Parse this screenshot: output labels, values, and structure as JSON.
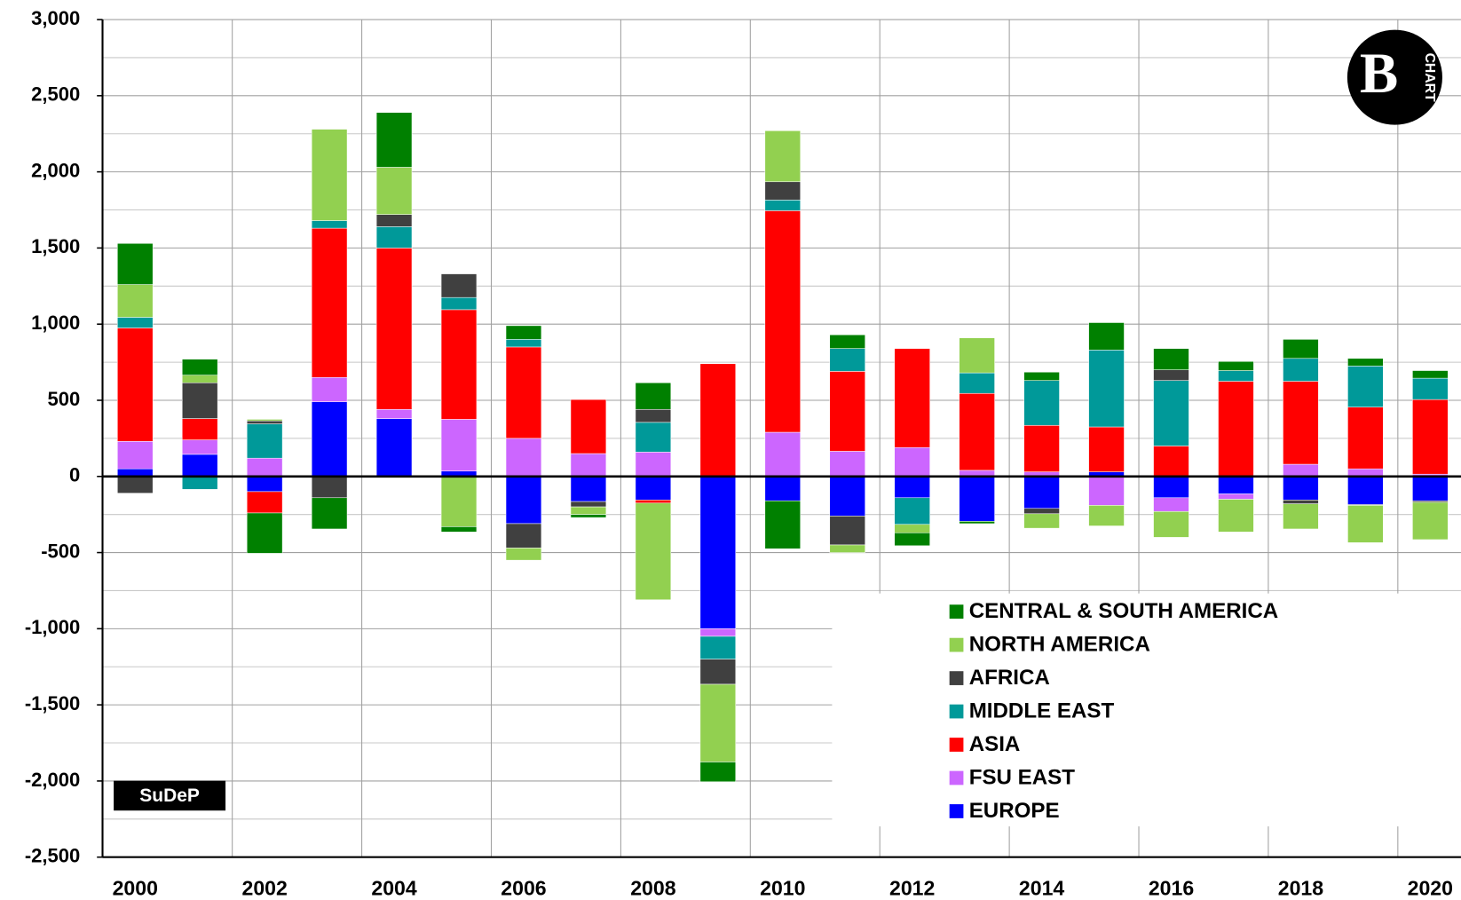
{
  "chart_data": {
    "type": "stacked_bar",
    "categories": [
      "2000",
      null,
      "2002",
      null,
      "2004",
      null,
      "2006",
      null,
      "2008",
      null,
      "2010",
      null,
      "2012",
      null,
      "2014",
      null,
      "2016",
      null,
      "2018",
      null,
      "2020"
    ],
    "series": [
      {
        "name": "EUROPE",
        "color": "#0000ff",
        "values": [
          50,
          145,
          -100,
          490,
          380,
          35,
          -310,
          -165,
          -155,
          -1000,
          -160,
          -260,
          -140,
          -295,
          -210,
          30,
          -140,
          -115,
          -155,
          -185,
          -160
        ]
      },
      {
        "name": "FSU EAST",
        "color": "#cc66ff",
        "values": [
          180,
          95,
          120,
          160,
          60,
          340,
          250,
          150,
          160,
          -50,
          290,
          165,
          190,
          40,
          30,
          -190,
          -90,
          -35,
          80,
          50,
          15
        ]
      },
      {
        "name": "ASIA",
        "color": "#ff0000",
        "values": [
          745,
          140,
          -140,
          980,
          1060,
          720,
          600,
          355,
          -20,
          740,
          1455,
          525,
          650,
          505,
          305,
          295,
          200,
          625,
          545,
          405,
          490
        ]
      },
      {
        "name": "MIDDLE EAST",
        "color": "#009999",
        "values": [
          70,
          -85,
          225,
          50,
          140,
          80,
          50,
          0,
          195,
          -150,
          70,
          150,
          -175,
          135,
          295,
          505,
          430,
          70,
          150,
          270,
          140
        ]
      },
      {
        "name": "AFRICA",
        "color": "#404040",
        "values": [
          -110,
          235,
          20,
          -140,
          80,
          155,
          -160,
          -35,
          85,
          -165,
          120,
          -190,
          0,
          0,
          -35,
          0,
          70,
          0,
          -25,
          -5,
          -10
        ]
      },
      {
        "name": "NORTH AMERICA",
        "color": "#92d050",
        "values": [
          215,
          50,
          10,
          600,
          310,
          -330,
          -80,
          -50,
          -635,
          -510,
          335,
          -50,
          -55,
          230,
          -95,
          -135,
          -170,
          -215,
          -165,
          -245,
          -245
        ]
      },
      {
        "name": "CENTRAL & SOUTH AMERICA",
        "color": "#008000",
        "values": [
          270,
          105,
          -265,
          -205,
          360,
          -35,
          90,
          -20,
          175,
          -130,
          -315,
          90,
          -85,
          -15,
          55,
          180,
          140,
          60,
          125,
          50,
          50
        ]
      }
    ],
    "ylim": [
      -2500,
      3000
    ],
    "yticks": [
      {
        "value": -2500,
        "label": "-2,500"
      },
      {
        "value": -2000,
        "label": "-2,000"
      },
      {
        "value": -1500,
        "label": "-1,500"
      },
      {
        "value": -1000,
        "label": "-1,000"
      },
      -500,
      0,
      500,
      {
        "value": 1000,
        "label": "1,000"
      },
      {
        "value": 1500,
        "label": "1,500"
      },
      {
        "value": 2000,
        "label": "2,000"
      },
      {
        "value": 2500,
        "label": "2,500"
      },
      {
        "value": 3000,
        "label": "3,000"
      }
    ],
    "grid": true,
    "legend": "lower right",
    "annotations": [
      "SuDeP",
      "CHART"
    ]
  }
}
